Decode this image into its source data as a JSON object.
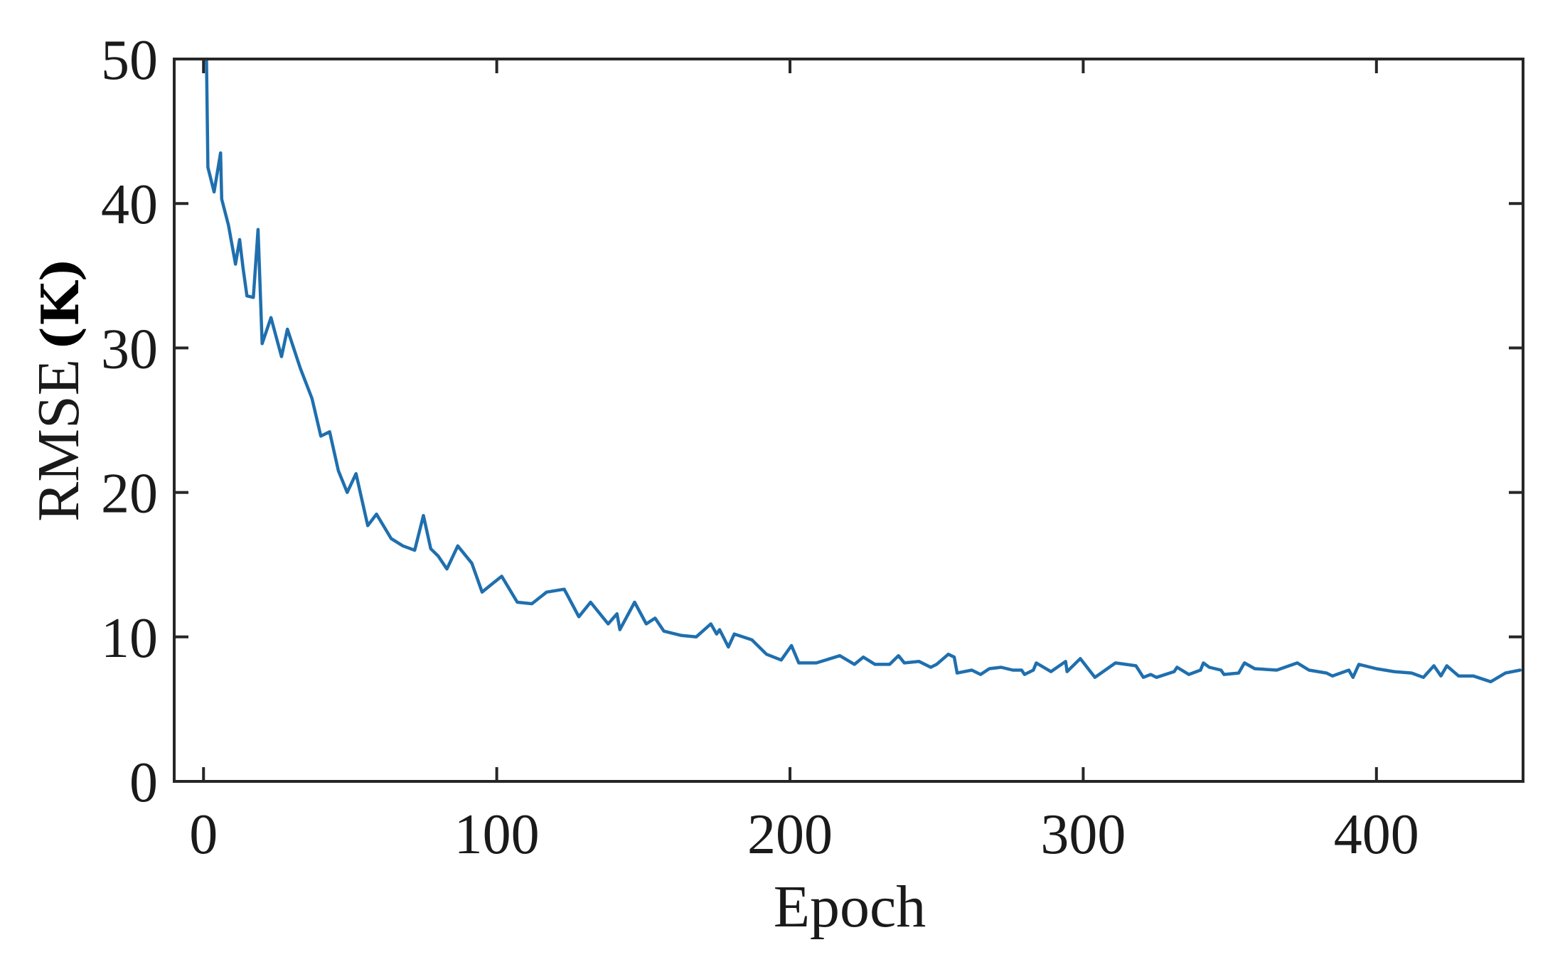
{
  "chart_data": {
    "type": "line",
    "title": "",
    "xlabel": "Epoch",
    "ylabel": "RMSE",
    "ylabel_unit": "(K)",
    "xlim": [
      -10,
      450
    ],
    "ylim": [
      0,
      50
    ],
    "xticks": [
      0,
      100,
      200,
      300,
      400
    ],
    "yticks": [
      0,
      10,
      20,
      30,
      40,
      50
    ],
    "grid": false,
    "legend": null,
    "series": [
      {
        "name": "RMSE",
        "color": "#1f6fae",
        "x": [
          0.5,
          1,
          1.5,
          3.6,
          5.8,
          6.2,
          8.5,
          10.9,
          12.3,
          13.5,
          14.8,
          17,
          18.6,
          20,
          23,
          26.6,
          28.6,
          33,
          37,
          40,
          43,
          46,
          49,
          52,
          56,
          59,
          64,
          68,
          72,
          75,
          77.5,
          80,
          83,
          86.7,
          91.5,
          95,
          98,
          101.7,
          107,
          112,
          117,
          123,
          128,
          132,
          138,
          141,
          142,
          147,
          151,
          154,
          157,
          163,
          168,
          173,
          175,
          176,
          179,
          181,
          187,
          192,
          197,
          200.5,
          203,
          209,
          217,
          222,
          225,
          229,
          234,
          237,
          239,
          244,
          248,
          250,
          254,
          256,
          257,
          262,
          265,
          268,
          272,
          276,
          279,
          280,
          283,
          284,
          289,
          294,
          294.5,
          299,
          304,
          311,
          318,
          320.5,
          323,
          325,
          331,
          332,
          336,
          340,
          341,
          343,
          347,
          348,
          353,
          355,
          358.5,
          366,
          373,
          377,
          383,
          385,
          390.6,
          392,
          394,
          400,
          406,
          412,
          416,
          419.6,
          422,
          424,
          428,
          433,
          439,
          444,
          449
        ],
        "y": [
          52,
          50,
          42.5,
          40.8,
          43.5,
          40.3,
          38.5,
          35.8,
          37.5,
          35.5,
          33.6,
          33.5,
          38.2,
          30.3,
          32.1,
          29.4,
          31.3,
          28.6,
          26.5,
          23.9,
          24.2,
          21.5,
          20.0,
          21.3,
          17.7,
          18.5,
          16.8,
          16.3,
          16.0,
          18.4,
          16.1,
          15.6,
          14.7,
          16.3,
          15.1,
          13.1,
          13.6,
          14.2,
          12.4,
          12.3,
          13.1,
          13.3,
          11.4,
          12.4,
          10.9,
          11.6,
          10.5,
          12.4,
          10.9,
          11.3,
          10.4,
          10.1,
          10.0,
          10.9,
          10.2,
          10.5,
          9.3,
          10.2,
          9.8,
          8.8,
          8.4,
          9.4,
          8.2,
          8.2,
          8.7,
          8.1,
          8.6,
          8.1,
          8.1,
          8.7,
          8.2,
          8.3,
          7.9,
          8.1,
          8.8,
          8.6,
          7.5,
          7.7,
          7.4,
          7.8,
          7.9,
          7.7,
          7.7,
          7.4,
          7.7,
          8.2,
          7.6,
          8.3,
          7.6,
          8.5,
          7.2,
          8.2,
          8.0,
          7.2,
          7.4,
          7.2,
          7.6,
          7.9,
          7.4,
          7.7,
          8.2,
          7.9,
          7.7,
          7.4,
          7.5,
          8.2,
          7.8,
          7.7,
          8.2,
          7.7,
          7.5,
          7.3,
          7.7,
          7.2,
          8.1,
          7.8,
          7.6,
          7.5,
          7.2,
          8.0,
          7.3,
          8.0,
          7.3,
          7.3,
          6.9,
          7.5,
          7.7
        ]
      }
    ]
  },
  "axes": {
    "xlabel": "Epoch",
    "ylabel_main": "RMSE",
    "ylabel_unit": "(K)",
    "xtick_labels": [
      "0",
      "100",
      "200",
      "300",
      "400"
    ],
    "ytick_labels": [
      "0",
      "10",
      "20",
      "30",
      "40",
      "50"
    ]
  }
}
